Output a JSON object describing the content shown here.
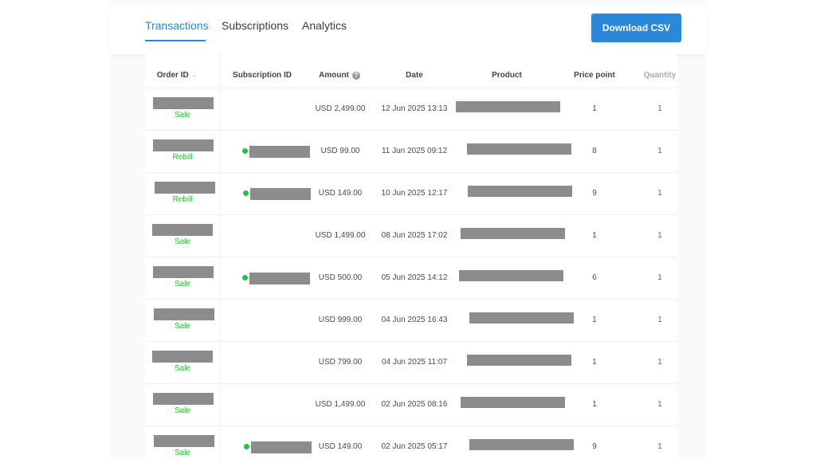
{
  "tabs": [
    {
      "label": "Transactions",
      "active": true
    },
    {
      "label": "Subscriptions",
      "active": false
    },
    {
      "label": "Analytics",
      "active": false
    }
  ],
  "download_button": "Download CSV",
  "columns": {
    "order_id": "Order ID",
    "subscription_id": "Subscription ID",
    "amount": "Amount",
    "date": "Date",
    "product": "Product",
    "price_point": "Price point",
    "quantity": "Quantity"
  },
  "icons": {
    "sort": "chevron-down-icon",
    "amount_help": "question-circle-icon",
    "subscription_status": "green-dot-icon"
  },
  "colors": {
    "accent": "#2b87d8",
    "status_green": "#27c13a",
    "redaction": "#8c8c8c"
  },
  "rows": [
    {
      "status": "Sale",
      "has_subscription": false,
      "amount": "USD 2,499.00",
      "date": "12 Jun 2025 13:13",
      "price_point": "1",
      "quantity": "1"
    },
    {
      "status": "Rebill",
      "has_subscription": true,
      "amount": "USD 99.00",
      "date": "11 Jun 2025 09:12",
      "price_point": "8",
      "quantity": "1"
    },
    {
      "status": "Rebill",
      "has_subscription": true,
      "amount": "USD 149.00",
      "date": "10 Jun 2025 12:17",
      "price_point": "9",
      "quantity": "1"
    },
    {
      "status": "Sale",
      "has_subscription": false,
      "amount": "USD 1,499.00",
      "date": "08 Jun 2025 17:02",
      "price_point": "1",
      "quantity": "1"
    },
    {
      "status": "Sale",
      "has_subscription": true,
      "amount": "USD 500.00",
      "date": "05 Jun 2025 14:12",
      "price_point": "6",
      "quantity": "1"
    },
    {
      "status": "Sale",
      "has_subscription": false,
      "amount": "USD 999.00",
      "date": "04 Jun 2025 16:43",
      "price_point": "1",
      "quantity": "1"
    },
    {
      "status": "Sale",
      "has_subscription": false,
      "amount": "USD 799.00",
      "date": "04 Jun 2025 11:07",
      "price_point": "1",
      "quantity": "1"
    },
    {
      "status": "Sale",
      "has_subscription": false,
      "amount": "USD 1,499.00",
      "date": "02 Jun 2025 08:16",
      "price_point": "1",
      "quantity": "1"
    },
    {
      "status": "Sale",
      "has_subscription": true,
      "amount": "USD 149.00",
      "date": "02 Jun 2025 05:17",
      "price_point": "9",
      "quantity": "1"
    }
  ]
}
